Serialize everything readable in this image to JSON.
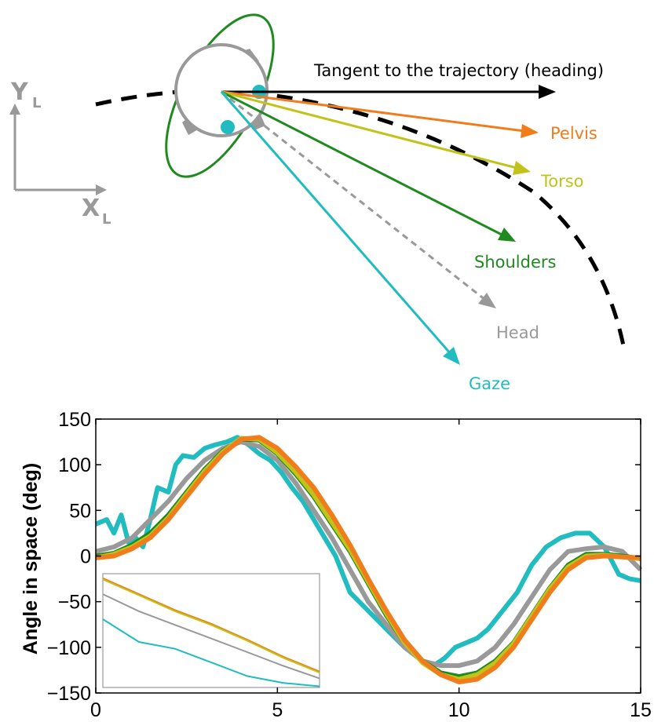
{
  "diagram": {
    "axis_y": "Y",
    "axis_y_sub": "L",
    "axis_x": "X",
    "axis_x_sub": "L",
    "labels": {
      "heading": "Tangent to the trajectory (heading)",
      "pelvis": "Pelvis",
      "torso": "Torso",
      "shoulders": "Shoulders",
      "head": "Head",
      "gaze": "Gaze"
    },
    "colors": {
      "pelvis": "#f07c1c",
      "torso": "#c2c21a",
      "shoulders": "#1f8a1f",
      "head": "#999999",
      "gaze": "#21bcbf",
      "heading": "#000000",
      "body": "#999999"
    }
  },
  "chart_data": {
    "type": "line",
    "title": "",
    "xlabel": "",
    "ylabel": "Angle in space (deg)",
    "xlim": [
      0,
      15
    ],
    "ylim": [
      -150,
      150
    ],
    "x_ticks": [
      "0",
      "5",
      "10",
      "15"
    ],
    "y_ticks": [
      "150",
      "100",
      "50",
      "0",
      "-50",
      "-100",
      "-150"
    ],
    "grid": false,
    "series": [
      {
        "name": "Gaze",
        "color": "#21bcbf",
        "x": [
          0,
          0.3,
          0.5,
          0.7,
          0.9,
          1.1,
          1.3,
          1.5,
          1.7,
          2.0,
          2.2,
          2.4,
          2.7,
          3.0,
          3.3,
          3.6,
          3.9,
          4.2,
          4.5,
          4.8,
          5.1,
          5.4,
          5.7,
          6.0,
          6.3,
          6.6,
          7.0,
          7.5,
          8.0,
          8.5,
          9.0,
          9.3,
          9.6,
          9.9,
          10.2,
          10.5,
          10.8,
          11.2,
          11.6,
          12.0,
          12.4,
          12.8,
          13.2,
          13.6,
          14.0,
          14.2,
          14.4,
          14.7,
          15.0
        ],
        "y": [
          35,
          40,
          25,
          45,
          15,
          20,
          10,
          40,
          75,
          70,
          100,
          110,
          108,
          118,
          122,
          125,
          130,
          122,
          112,
          105,
          92,
          75,
          60,
          40,
          20,
          0,
          -40,
          -60,
          -80,
          -100,
          -115,
          -120,
          -112,
          -100,
          -95,
          -90,
          -80,
          -60,
          -40,
          -10,
          10,
          20,
          25,
          25,
          10,
          -5,
          -20,
          -25,
          -27
        ]
      },
      {
        "name": "Head",
        "color": "#999999",
        "x": [
          0,
          0.5,
          1.0,
          1.5,
          2.0,
          2.5,
          3.0,
          3.5,
          4.0,
          4.5,
          5.0,
          5.5,
          6.0,
          6.5,
          7.0,
          7.5,
          8.0,
          8.5,
          9.0,
          9.5,
          10.0,
          10.5,
          11.0,
          11.5,
          12.0,
          12.5,
          13.0,
          13.5,
          14.0,
          14.5,
          15.0
        ],
        "y": [
          5,
          10,
          20,
          40,
          60,
          85,
          105,
          118,
          125,
          120,
          105,
          80,
          50,
          20,
          -15,
          -50,
          -75,
          -100,
          -115,
          -120,
          -120,
          -115,
          -100,
          -75,
          -45,
          -15,
          5,
          8,
          10,
          5,
          -15
        ]
      },
      {
        "name": "Shoulders",
        "color": "#1f8a1f",
        "x": [
          0,
          0.5,
          1.0,
          1.5,
          2.0,
          2.5,
          3.0,
          3.5,
          4.0,
          4.5,
          5.0,
          5.5,
          6.0,
          6.5,
          7.0,
          7.5,
          8.0,
          8.5,
          9.0,
          9.5,
          10.0,
          10.5,
          11.0,
          11.5,
          12.0,
          12.5,
          13.0,
          13.5,
          14.0,
          14.5,
          15.0
        ],
        "y": [
          0,
          3,
          12,
          25,
          45,
          70,
          95,
          115,
          128,
          127,
          112,
          90,
          65,
          35,
          5,
          -30,
          -65,
          -95,
          -115,
          -128,
          -132,
          -128,
          -115,
          -95,
          -65,
          -35,
          -10,
          2,
          2,
          0,
          -3
        ]
      },
      {
        "name": "Torso",
        "color": "#c2c21a",
        "x": [
          0,
          0.5,
          1.0,
          1.5,
          2.0,
          2.5,
          3.0,
          3.5,
          4.0,
          4.5,
          5.0,
          5.5,
          6.0,
          6.5,
          7.0,
          7.5,
          8.0,
          8.5,
          9.0,
          9.5,
          10.0,
          10.5,
          11.0,
          11.5,
          12.0,
          12.5,
          13.0,
          13.5,
          14.0,
          14.5,
          15.0
        ],
        "y": [
          -2,
          2,
          10,
          22,
          42,
          68,
          93,
          114,
          129,
          128,
          113,
          92,
          67,
          37,
          7,
          -28,
          -63,
          -95,
          -117,
          -130,
          -135,
          -130,
          -117,
          -96,
          -66,
          -36,
          -12,
          0,
          1,
          -1,
          -3
        ]
      },
      {
        "name": "Pelvis",
        "color": "#f07c1c",
        "x": [
          0,
          0.5,
          1.0,
          1.5,
          2.0,
          2.5,
          3.0,
          3.5,
          4.0,
          4.5,
          5.0,
          5.5,
          6.0,
          6.5,
          7.0,
          7.5,
          8.0,
          8.5,
          9.0,
          9.5,
          10.0,
          10.5,
          11.0,
          11.5,
          12.0,
          12.5,
          13.0,
          13.5,
          14.0,
          14.5,
          15.0
        ],
        "y": [
          -2,
          0,
          8,
          20,
          40,
          65,
          90,
          112,
          128,
          130,
          118,
          98,
          75,
          45,
          12,
          -25,
          -60,
          -92,
          -115,
          -130,
          -138,
          -135,
          -122,
          -100,
          -70,
          -40,
          -15,
          -2,
          0,
          -1,
          -2
        ]
      }
    ],
    "inset": {
      "series": [
        {
          "name": "Pelvis",
          "color": "#f07c1c",
          "y": [
            0.96,
            0.82,
            0.68,
            0.56,
            0.42,
            0.27,
            0.14
          ]
        },
        {
          "name": "Torso",
          "color": "#c2c21a",
          "y": [
            0.95,
            0.81,
            0.67,
            0.55,
            0.41,
            0.26,
            0.13
          ]
        },
        {
          "name": "Head",
          "color": "#999999",
          "y": [
            0.82,
            0.67,
            0.55,
            0.43,
            0.31,
            0.19,
            0.08
          ]
        },
        {
          "name": "Gaze",
          "color": "#21bcbf",
          "y": [
            0.6,
            0.4,
            0.34,
            0.22,
            0.1,
            0.04,
            0.01
          ]
        }
      ]
    }
  }
}
